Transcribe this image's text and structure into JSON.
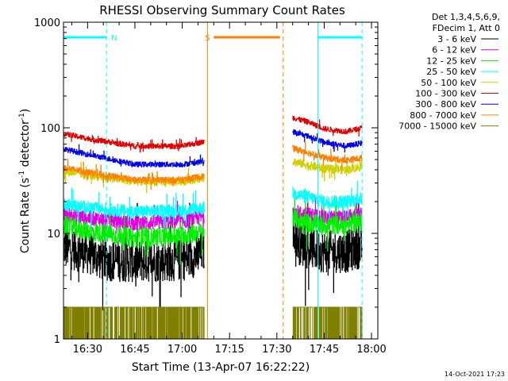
{
  "chart_data": {
    "type": "line",
    "title": "RHESSI Observing Summary Count Rates",
    "xlabel": "Start Time (13-Apr-07 16:22:22)",
    "ylabel_main": "Count Rate (s",
    "ylabel_sup1": "-1",
    "ylabel_mid": " detector",
    "ylabel_sup2": "-1",
    "ylabel_end": ")",
    "y_scale": "log",
    "ylim": [
      1,
      1000
    ],
    "xlim": [
      "16:22:22",
      "18:02:00"
    ],
    "x_ticks": [
      "16:30",
      "16:45",
      "17:00",
      "17:15",
      "17:30",
      "17:45",
      "18:00"
    ],
    "y_ticks": [
      "1",
      "10",
      "100",
      "1000"
    ],
    "legend_header": [
      "Det 1,3,4,5,6,9,",
      "FDecim 1, Att 0"
    ],
    "legend_placement": "right",
    "timestamp": "14-Oct-2021 17:23",
    "series": [
      {
        "name": "3 - 6 keV",
        "color": "#000000",
        "seg1": [
          [
            "16:22:22",
            7.5
          ],
          [
            "16:30",
            6.5
          ],
          [
            "16:35",
            5.6
          ],
          [
            "16:45",
            5.4
          ],
          [
            "17:00",
            5.6
          ],
          [
            "17:05",
            6.2
          ],
          [
            "17:07",
            7.0
          ]
        ],
        "seg2": [
          [
            "17:35",
            12
          ],
          [
            "17:37",
            8.0
          ],
          [
            "17:40",
            7.2
          ],
          [
            "17:45",
            6.7
          ],
          [
            "17:52",
            6.7
          ],
          [
            "17:57",
            7.5
          ]
        ],
        "noise": 0.2
      },
      {
        "name": "6 - 12 keV",
        "color": "#e000e0",
        "seg1": [
          [
            "16:22:22",
            15
          ],
          [
            "16:30",
            14
          ],
          [
            "16:45",
            12.5
          ],
          [
            "17:00",
            13
          ],
          [
            "17:07",
            14.5
          ]
        ],
        "seg2": [
          [
            "17:35",
            16
          ],
          [
            "17:40",
            15
          ],
          [
            "17:45",
            14
          ],
          [
            "17:52",
            14
          ],
          [
            "17:57",
            15
          ]
        ],
        "noise": 0.07
      },
      {
        "name": "12 - 25 keV",
        "color": "#00ee00",
        "seg1": [
          [
            "16:22:22",
            12
          ],
          [
            "16:30",
            10.5
          ],
          [
            "16:45",
            9.0
          ],
          [
            "17:00",
            9.5
          ],
          [
            "17:07",
            10.5
          ]
        ],
        "seg2": [
          [
            "17:35",
            14
          ],
          [
            "17:40",
            12.5
          ],
          [
            "17:45",
            12
          ],
          [
            "17:52",
            12
          ],
          [
            "17:57",
            13
          ]
        ],
        "noise": 0.09
      },
      {
        "name": "25 - 50 keV",
        "color": "#00ffff",
        "seg1": [
          [
            "16:22:22",
            19
          ],
          [
            "16:30",
            17.5
          ],
          [
            "16:45",
            16
          ],
          [
            "17:00",
            16.5
          ],
          [
            "17:07",
            17.5
          ]
        ],
        "seg2": [
          [
            "17:35",
            24
          ],
          [
            "17:40",
            22
          ],
          [
            "17:45",
            20
          ],
          [
            "17:52",
            20
          ],
          [
            "17:57",
            21.5
          ]
        ],
        "noise": 0.06
      },
      {
        "name": "50 - 100 keV",
        "color": "#d0d000",
        "seg1": [
          [
            "16:22:22",
            39
          ],
          [
            "16:30",
            36
          ],
          [
            "16:45",
            31
          ],
          [
            "17:00",
            31
          ],
          [
            "17:07",
            34
          ]
        ],
        "seg2": [
          [
            "17:35",
            48
          ],
          [
            "17:40",
            44
          ],
          [
            "17:45",
            41
          ],
          [
            "17:52",
            40
          ],
          [
            "17:57",
            43
          ]
        ],
        "noise": 0.04
      },
      {
        "name": "100 - 300 keV",
        "color": "#e00000",
        "seg1": [
          [
            "16:22:22",
            88
          ],
          [
            "16:30",
            79
          ],
          [
            "16:45",
            67
          ],
          [
            "17:00",
            67
          ],
          [
            "17:07",
            74
          ]
        ],
        "seg2": [
          [
            "17:35",
            125
          ],
          [
            "17:40",
            113
          ],
          [
            "17:45",
            98
          ],
          [
            "17:52",
            92
          ],
          [
            "17:57",
            100
          ]
        ],
        "noise": 0.025
      },
      {
        "name": "300 - 800 keV",
        "color": "#0000ee",
        "seg1": [
          [
            "16:22:22",
            63
          ],
          [
            "16:30",
            56
          ],
          [
            "16:45",
            45
          ],
          [
            "17:00",
            45
          ],
          [
            "17:07",
            48
          ]
        ],
        "seg2": [
          [
            "17:35",
            92
          ],
          [
            "17:40",
            83
          ],
          [
            "17:45",
            73
          ],
          [
            "17:52",
            67
          ],
          [
            "17:57",
            72
          ]
        ],
        "noise": 0.025
      },
      {
        "name": "800 - 7000 keV",
        "color": "#ff8000",
        "seg1": [
          [
            "16:22:22",
            42
          ],
          [
            "16:30",
            38
          ],
          [
            "16:45",
            32
          ],
          [
            "17:00",
            32
          ],
          [
            "17:07",
            35
          ]
        ],
        "seg2": [
          [
            "17:35",
            64
          ],
          [
            "17:40",
            58
          ],
          [
            "17:45",
            52
          ],
          [
            "17:52",
            49
          ],
          [
            "17:57",
            52
          ]
        ],
        "noise": 0.03
      },
      {
        "name": "7000 - 15000 keV",
        "color": "#808000",
        "seg1": [
          [
            "16:22:22",
            1.0
          ],
          [
            "17:07",
            1.0
          ]
        ],
        "seg2": [
          [
            "17:35",
            1.0
          ],
          [
            "17:57",
            1.0
          ]
        ],
        "noise": 0.0,
        "spiky": true,
        "spike_level": 2.0
      }
    ],
    "flag_bars": [
      {
        "label": "N",
        "color": "#00ffff",
        "start": "16:22:22",
        "end": "16:36"
      },
      {
        "label": "S",
        "color": "#ff8000",
        "start": "17:10",
        "end": "17:31"
      },
      {
        "label": "",
        "color": "#00ffff",
        "start": "17:43",
        "end": "17:57"
      }
    ],
    "marker_lines": [
      {
        "time": "16:22:22",
        "color": "#00ffff",
        "style": "solid"
      },
      {
        "time": "16:36",
        "color": "#00ffff",
        "style": "dashed"
      },
      {
        "time": "17:08",
        "color": "#ff8000",
        "style": "solid"
      },
      {
        "time": "17:32",
        "color": "#ff8000",
        "style": "dashed"
      },
      {
        "time": "17:43",
        "color": "#00ffff",
        "style": "solid"
      },
      {
        "time": "17:57",
        "color": "#00ffff",
        "style": "dashed"
      }
    ]
  }
}
